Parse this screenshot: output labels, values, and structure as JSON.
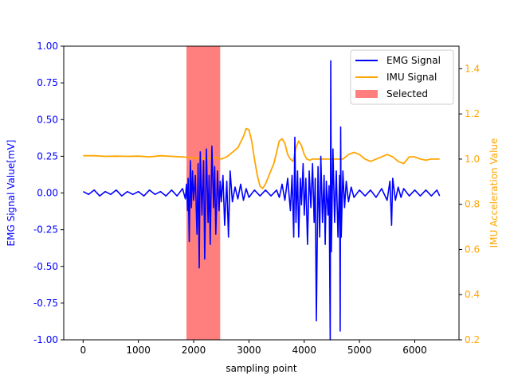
{
  "chart_data": {
    "type": "line",
    "title": "",
    "xlabel": "sampling point",
    "ylabel_left": "EMG Signal Value[mV]",
    "ylabel_right": "IMU Acceleration Value",
    "xlim": [
      -350,
      6800
    ],
    "ylim_left": [
      -1.0,
      1.0
    ],
    "ylim_right": [
      0.2,
      1.5
    ],
    "x_ticks": [
      0,
      1000,
      2000,
      3000,
      4000,
      5000,
      6000
    ],
    "y_left_ticks": [
      -1.0,
      -0.75,
      -0.5,
      -0.25,
      0.0,
      0.25,
      0.5,
      0.75,
      1.0
    ],
    "y_right_ticks": [
      0.2,
      0.4,
      0.6,
      0.8,
      1.0,
      1.2,
      1.4
    ],
    "grid": false,
    "legend_position": "top-right",
    "left_axis_color": "#0000ff",
    "right_axis_color": "#ffa500",
    "series": [
      {
        "name": "EMG Signal",
        "axis": "left",
        "color": "#0000ff",
        "x": [
          0,
          100,
          200,
          300,
          400,
          500,
          600,
          700,
          800,
          900,
          1000,
          1100,
          1200,
          1300,
          1400,
          1500,
          1600,
          1700,
          1800,
          1850,
          1870,
          1890,
          1900,
          1920,
          1940,
          1960,
          1980,
          2000,
          2030,
          2060,
          2080,
          2100,
          2120,
          2150,
          2180,
          2200,
          2230,
          2260,
          2280,
          2300,
          2330,
          2360,
          2380,
          2400,
          2430,
          2460,
          2480,
          2500,
          2530,
          2560,
          2600,
          2630,
          2660,
          2700,
          2750,
          2800,
          2850,
          2900,
          2950,
          3000,
          3100,
          3200,
          3300,
          3400,
          3500,
          3550,
          3600,
          3650,
          3700,
          3750,
          3780,
          3810,
          3830,
          3850,
          3880,
          3900,
          3930,
          3950,
          3980,
          4000,
          4030,
          4060,
          4090,
          4120,
          4150,
          4180,
          4200,
          4220,
          4250,
          4280,
          4300,
          4330,
          4360,
          4380,
          4400,
          4430,
          4450,
          4470,
          4480,
          4490,
          4520,
          4550,
          4580,
          4610,
          4640,
          4650,
          4660,
          4670,
          4700,
          4730,
          4760,
          4800,
          4850,
          4900,
          5000,
          5100,
          5200,
          5300,
          5400,
          5500,
          5550,
          5580,
          5600,
          5650,
          5700,
          5750,
          5800,
          5900,
          6000,
          6100,
          6200,
          6300,
          6400,
          6450
        ],
        "values": [
          0.01,
          -0.01,
          0.02,
          -0.02,
          0.01,
          -0.01,
          0.02,
          -0.02,
          0.01,
          -0.01,
          0.01,
          -0.02,
          0.02,
          -0.01,
          0.01,
          -0.02,
          0.02,
          -0.02,
          0.03,
          -0.04,
          0.06,
          -0.12,
          0.1,
          -0.33,
          0.22,
          -0.1,
          0.15,
          -0.05,
          0.12,
          -0.28,
          0.2,
          -0.51,
          0.28,
          -0.15,
          0.22,
          -0.45,
          0.3,
          -0.2,
          0.12,
          -0.35,
          0.32,
          -0.1,
          0.18,
          -0.28,
          0.15,
          -0.12,
          0.08,
          -0.06,
          0.12,
          -0.22,
          0.08,
          -0.3,
          0.15,
          -0.06,
          0.04,
          -0.04,
          0.06,
          -0.05,
          0.03,
          -0.03,
          0.02,
          -0.02,
          0.02,
          -0.02,
          0.02,
          -0.03,
          0.06,
          -0.05,
          0.1,
          -0.12,
          0.12,
          -0.3,
          0.38,
          -0.2,
          0.15,
          -0.3,
          0.1,
          -0.08,
          0.2,
          -0.15,
          0.1,
          -0.35,
          0.15,
          -0.1,
          0.2,
          -0.2,
          0.1,
          -0.87,
          0.18,
          -0.3,
          0.25,
          -0.2,
          0.12,
          -0.35,
          0.08,
          -0.15,
          0.05,
          -1.0,
          0.9,
          -0.4,
          0.3,
          -0.2,
          0.15,
          -0.3,
          0.12,
          -0.94,
          0.45,
          -0.3,
          0.15,
          -0.1,
          0.08,
          -0.06,
          0.04,
          -0.03,
          0.02,
          -0.02,
          0.02,
          -0.03,
          0.03,
          -0.05,
          0.08,
          -0.22,
          0.1,
          -0.05,
          0.04,
          -0.03,
          0.03,
          -0.02,
          0.02,
          -0.02,
          0.02,
          -0.02,
          0.02,
          -0.02
        ]
      },
      {
        "name": "IMU Signal",
        "axis": "right",
        "color": "#ffa500",
        "x": [
          0,
          200,
          400,
          600,
          800,
          1000,
          1200,
          1400,
          1600,
          1800,
          2000,
          2200,
          2400,
          2500,
          2600,
          2700,
          2800,
          2900,
          2950,
          3000,
          3050,
          3100,
          3150,
          3200,
          3250,
          3300,
          3350,
          3400,
          3450,
          3500,
          3550,
          3600,
          3650,
          3700,
          3750,
          3800,
          3850,
          3900,
          3950,
          4000,
          4050,
          4100,
          4150,
          4200,
          4300,
          4400,
          4500,
          4600,
          4700,
          4800,
          4900,
          5000,
          5100,
          5200,
          5300,
          5400,
          5500,
          5600,
          5700,
          5800,
          5900,
          6000,
          6100,
          6200,
          6300,
          6450
        ],
        "values": [
          1.015,
          1.015,
          1.012,
          1.013,
          1.012,
          1.013,
          1.01,
          1.015,
          1.012,
          1.01,
          1.005,
          1.003,
          1.007,
          1.0,
          1.01,
          1.03,
          1.05,
          1.1,
          1.135,
          1.13,
          1.08,
          1.0,
          0.93,
          0.88,
          0.87,
          0.89,
          0.92,
          0.95,
          0.98,
          1.03,
          1.08,
          1.09,
          1.07,
          1.02,
          1.0,
          0.99,
          1.05,
          1.08,
          1.06,
          1.02,
          1.0,
          0.995,
          1.0,
          1.0,
          1.0,
          1.0,
          1.0,
          1.0,
          1.0,
          1.02,
          1.03,
          1.02,
          1.0,
          0.99,
          1.0,
          1.01,
          1.02,
          1.01,
          0.99,
          0.98,
          1.01,
          1.01,
          1.0,
          0.995,
          1.0,
          1.0
        ]
      }
    ],
    "highlight": {
      "name": "Selected",
      "x_start": 1870,
      "x_end": 2480,
      "color": "#ff0000",
      "opacity": 0.5
    },
    "legend": [
      "EMG Signal",
      "IMU Signal",
      "Selected"
    ]
  }
}
